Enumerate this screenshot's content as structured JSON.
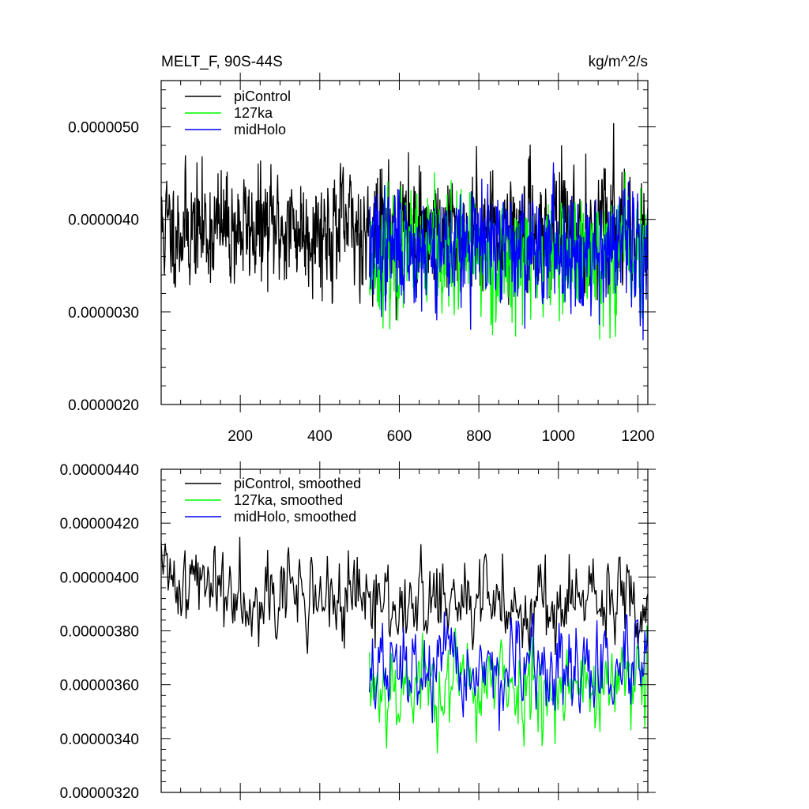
{
  "chart_data": [
    {
      "type": "line",
      "title_left": "MELT_F, 90S-44S",
      "title_right": "kg/m^2/s",
      "xlabel": "",
      "ylabel": "",
      "xlim": [
        1,
        1225
      ],
      "ylim": [
        2e-06,
        5.5e-06
      ],
      "xticks": [
        {
          "value": 200,
          "label": "200"
        },
        {
          "value": 400,
          "label": "400"
        },
        {
          "value": 600,
          "label": "600"
        },
        {
          "value": 800,
          "label": "800"
        },
        {
          "value": 1000,
          "label": "1000"
        },
        {
          "value": 1200,
          "label": "1200"
        }
      ],
      "yticks": [
        {
          "value": 2e-06,
          "label": "0.0000020"
        },
        {
          "value": 3e-06,
          "label": "0.0000030"
        },
        {
          "value": 4e-06,
          "label": "0.0000040"
        },
        {
          "value": 5e-06,
          "label": "0.0000050"
        }
      ],
      "grid": false,
      "legend": "top-left",
      "series": [
        {
          "name": "piControl",
          "color": "#000000",
          "x_start": 1,
          "x_end": 1225,
          "mean": 3.9e-06,
          "spread": 4.5e-07,
          "points": 1225,
          "seed": 11
        },
        {
          "name": "127ka",
          "color": "#00ff00",
          "x_start": 525,
          "x_end": 1225,
          "mean": 3.6e-06,
          "spread": 4.5e-07,
          "points": 700,
          "seed": 23
        },
        {
          "name": "midHolo",
          "color": "#0000ff",
          "x_start": 525,
          "x_end": 1225,
          "mean": 3.7e-06,
          "spread": 4.5e-07,
          "points": 700,
          "seed": 37
        }
      ]
    },
    {
      "type": "line",
      "xlim": [
        1,
        1225
      ],
      "ylim": [
        3.2e-06,
        4.4e-06
      ],
      "xticks": [
        {
          "value": 200,
          "label": ""
        },
        {
          "value": 400,
          "label": ""
        },
        {
          "value": 600,
          "label": ""
        },
        {
          "value": 800,
          "label": ""
        },
        {
          "value": 1000,
          "label": ""
        },
        {
          "value": 1200,
          "label": ""
        }
      ],
      "yticks": [
        {
          "value": 3.2e-06,
          "label": "0.00000320"
        },
        {
          "value": 3.4e-06,
          "label": "0.00000340"
        },
        {
          "value": 3.6e-06,
          "label": "0.00000360"
        },
        {
          "value": 3.8e-06,
          "label": "0.00000380"
        },
        {
          "value": 4e-06,
          "label": "0.00000400"
        },
        {
          "value": 4.2e-06,
          "label": "0.00000420"
        },
        {
          "value": 4.4e-06,
          "label": "0.00000440"
        }
      ],
      "grid": false,
      "legend": "top-left",
      "series": [
        {
          "name": "piControl, smoothed",
          "color": "#000000",
          "x_start": 1,
          "x_end": 1225,
          "mean": 3.9e-06,
          "spread": 1.2e-07,
          "points": 490,
          "seed": 41
        },
        {
          "name": "127ka, smoothed",
          "color": "#00ff00",
          "x_start": 525,
          "x_end": 1225,
          "mean": 3.6e-06,
          "spread": 1.3e-07,
          "points": 280,
          "seed": 53
        },
        {
          "name": "midHolo, smoothed",
          "color": "#0000ff",
          "x_start": 525,
          "x_end": 1225,
          "mean": 3.65e-06,
          "spread": 1.2e-07,
          "points": 280,
          "seed": 67
        }
      ]
    }
  ]
}
